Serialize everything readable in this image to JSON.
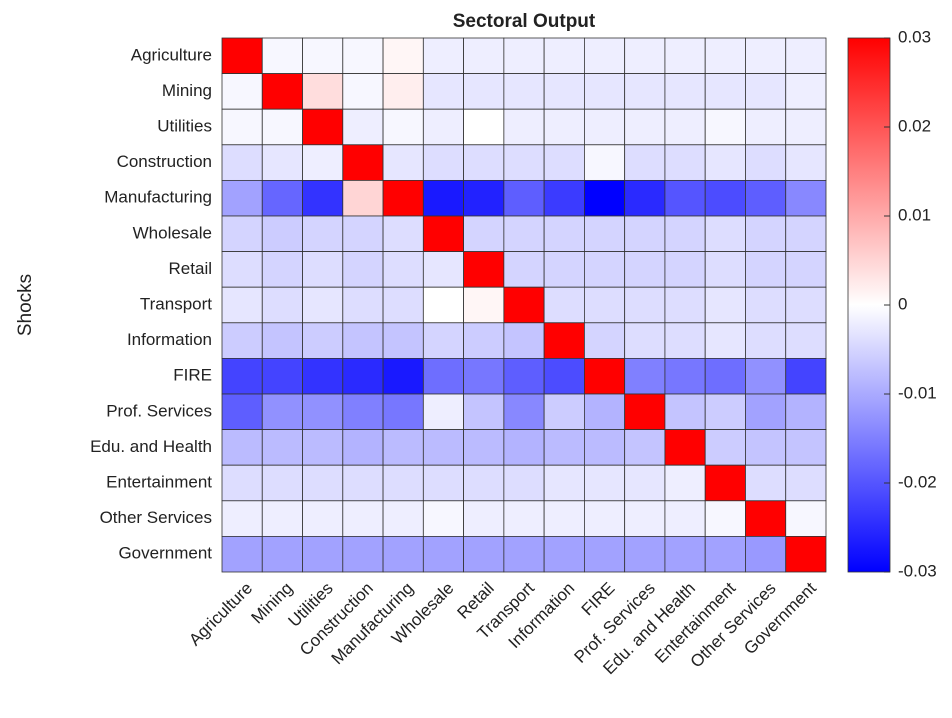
{
  "chart_data": {
    "type": "heatmap",
    "title": "Sectoral Output",
    "ylabel": "Shocks",
    "x_categories": [
      "Agriculture",
      "Mining",
      "Utilities",
      "Construction",
      "Manufacturing",
      "Wholesale",
      "Retail",
      "Transport",
      "Information",
      "FIRE",
      "Prof. Services",
      "Edu. and Health",
      "Entertainment",
      "Other Services",
      "Government"
    ],
    "y_categories": [
      "Agriculture",
      "Mining",
      "Utilities",
      "Construction",
      "Manufacturing",
      "Wholesale",
      "Retail",
      "Transport",
      "Information",
      "FIRE",
      "Prof. Services",
      "Edu. and Health",
      "Entertainment",
      "Other Services",
      "Government"
    ],
    "values": [
      [
        0.03,
        -0.001,
        -0.001,
        -0.001,
        0.001,
        -0.002,
        -0.002,
        -0.002,
        -0.002,
        -0.002,
        -0.002,
        -0.002,
        -0.002,
        -0.002,
        -0.002
      ],
      [
        -0.001,
        0.03,
        0.004,
        -0.001,
        0.002,
        -0.003,
        -0.003,
        -0.003,
        -0.003,
        -0.003,
        -0.003,
        -0.003,
        -0.003,
        -0.003,
        -0.002
      ],
      [
        -0.001,
        -0.001,
        0.03,
        -0.002,
        -0.001,
        -0.002,
        0,
        -0.002,
        -0.002,
        -0.002,
        -0.002,
        -0.002,
        -0.001,
        -0.002,
        -0.002
      ],
      [
        -0.004,
        -0.003,
        -0.002,
        0.03,
        -0.003,
        -0.004,
        -0.004,
        -0.004,
        -0.004,
        -0.001,
        -0.004,
        -0.004,
        -0.003,
        -0.004,
        -0.003
      ],
      [
        -0.011,
        -0.018,
        -0.024,
        0.005,
        0.03,
        -0.027,
        -0.026,
        -0.019,
        -0.023,
        -0.03,
        -0.025,
        -0.02,
        -0.021,
        -0.019,
        -0.014
      ],
      [
        -0.005,
        -0.006,
        -0.005,
        -0.005,
        -0.004,
        0.03,
        -0.005,
        -0.005,
        -0.005,
        -0.005,
        -0.005,
        -0.005,
        -0.004,
        -0.005,
        -0.005
      ],
      [
        -0.004,
        -0.005,
        -0.004,
        -0.005,
        -0.004,
        -0.003,
        0.03,
        -0.005,
        -0.005,
        -0.005,
        -0.005,
        -0.005,
        -0.004,
        -0.005,
        -0.005
      ],
      [
        -0.003,
        -0.004,
        -0.003,
        -0.004,
        -0.004,
        0,
        0.001,
        0.03,
        -0.004,
        -0.004,
        -0.004,
        -0.004,
        -0.003,
        -0.004,
        -0.004
      ],
      [
        -0.006,
        -0.007,
        -0.006,
        -0.007,
        -0.007,
        -0.005,
        -0.006,
        -0.007,
        0.03,
        -0.005,
        -0.004,
        -0.004,
        -0.003,
        -0.004,
        -0.004
      ],
      [
        -0.022,
        -0.022,
        -0.024,
        -0.025,
        -0.027,
        -0.017,
        -0.016,
        -0.019,
        -0.021,
        0.03,
        -0.015,
        -0.016,
        -0.017,
        -0.013,
        -0.022
      ],
      [
        -0.019,
        -0.013,
        -0.013,
        -0.015,
        -0.016,
        -0.002,
        -0.007,
        -0.014,
        -0.006,
        -0.009,
        0.03,
        -0.007,
        -0.006,
        -0.011,
        -0.009
      ],
      [
        -0.008,
        -0.008,
        -0.008,
        -0.009,
        -0.008,
        -0.008,
        -0.008,
        -0.009,
        -0.008,
        -0.008,
        -0.007,
        0.03,
        -0.006,
        -0.007,
        -0.007
      ],
      [
        -0.004,
        -0.004,
        -0.004,
        -0.004,
        -0.004,
        -0.004,
        -0.004,
        -0.004,
        -0.003,
        -0.003,
        -0.003,
        -0.002,
        0.03,
        -0.004,
        -0.004
      ],
      [
        -0.002,
        -0.002,
        -0.002,
        -0.002,
        -0.002,
        -0.001,
        -0.002,
        -0.002,
        -0.002,
        -0.002,
        -0.002,
        -0.002,
        -0.001,
        0.03,
        -0.001
      ],
      [
        -0.011,
        -0.011,
        -0.011,
        -0.011,
        -0.011,
        -0.011,
        -0.011,
        -0.011,
        -0.011,
        -0.011,
        -0.011,
        -0.011,
        -0.011,
        -0.012,
        0.03
      ]
    ],
    "zlim": [
      -0.03,
      0.03
    ],
    "zticks": [
      -0.03,
      -0.02,
      -0.01,
      0,
      0.01,
      0.02,
      0.03
    ],
    "colormap": [
      "#0000ff",
      "#ffffff",
      "#ff0000"
    ]
  }
}
